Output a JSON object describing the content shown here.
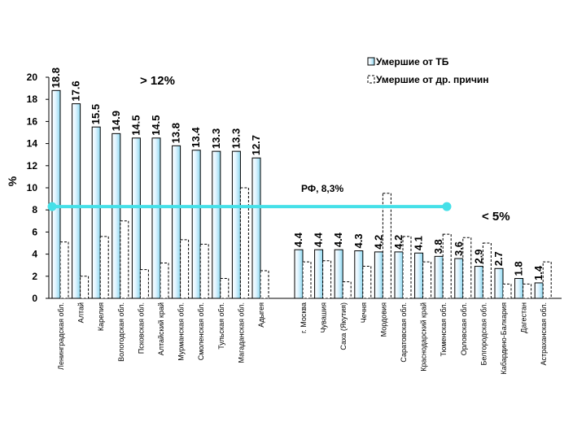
{
  "chart_data": {
    "type": "bar",
    "ylabel": "%",
    "ylim": [
      0,
      20
    ],
    "yticks": [
      0,
      2,
      4,
      6,
      8,
      10,
      12,
      14,
      16,
      18,
      20
    ],
    "categories": [
      "Ленинградская обл.",
      "Алтай",
      "Карелия",
      "Вологодская обл.",
      "Псковская обл.",
      "Алтайский край",
      "Мурманская обл.",
      "Смоленская обл.",
      "Тульская обл.",
      "Магаданская обл.",
      "Адыгея",
      "г. Москва",
      "Чувашия",
      "Саха (Якутия)",
      "Чечня",
      "Мордовия",
      "Саратовская обл.",
      "Краснодарский край",
      "Тюменская обл.",
      "Орловская обл.",
      "Белгородская обл.",
      "Кабардино-Балкария",
      "Дагестан",
      "Астраханская обл."
    ],
    "series": [
      {
        "name": "Умершие от ТБ",
        "values": [
          18.8,
          17.6,
          15.5,
          14.9,
          14.5,
          14.5,
          13.8,
          13.4,
          13.3,
          13.3,
          12.7,
          4.4,
          4.4,
          4.4,
          4.3,
          4.2,
          4.2,
          4.1,
          3.8,
          3.6,
          2.9,
          2.7,
          1.8,
          1.4
        ],
        "labels": [
          "18.8",
          "17.6",
          "15.5",
          "14.9",
          "14.5",
          "14.5",
          "13.8",
          "13.4",
          "13.3",
          "13.3",
          "12.7",
          "4.4",
          "4.4",
          "4.4",
          "4.3",
          "4.2",
          "4.2",
          "4.1",
          "3.8",
          "3.6",
          "2.9",
          "2.7",
          "1.8",
          "1.4"
        ]
      },
      {
        "name": "Умершие от др. причин",
        "values": [
          5.1,
          2.0,
          5.6,
          7.0,
          2.6,
          3.2,
          5.3,
          4.9,
          1.8,
          10.0,
          2.5,
          3.3,
          3.4,
          1.5,
          2.9,
          9.5,
          5.6,
          3.3,
          5.8,
          5.5,
          5.0,
          1.3,
          1.3,
          3.3
        ]
      }
    ],
    "reference_line": {
      "value": 8.3,
      "label": "РФ, 8,3%"
    },
    "annotations": [
      {
        "text": "> 12%"
      },
      {
        "text": "< 5%"
      }
    ],
    "legend_position": "top-right"
  }
}
